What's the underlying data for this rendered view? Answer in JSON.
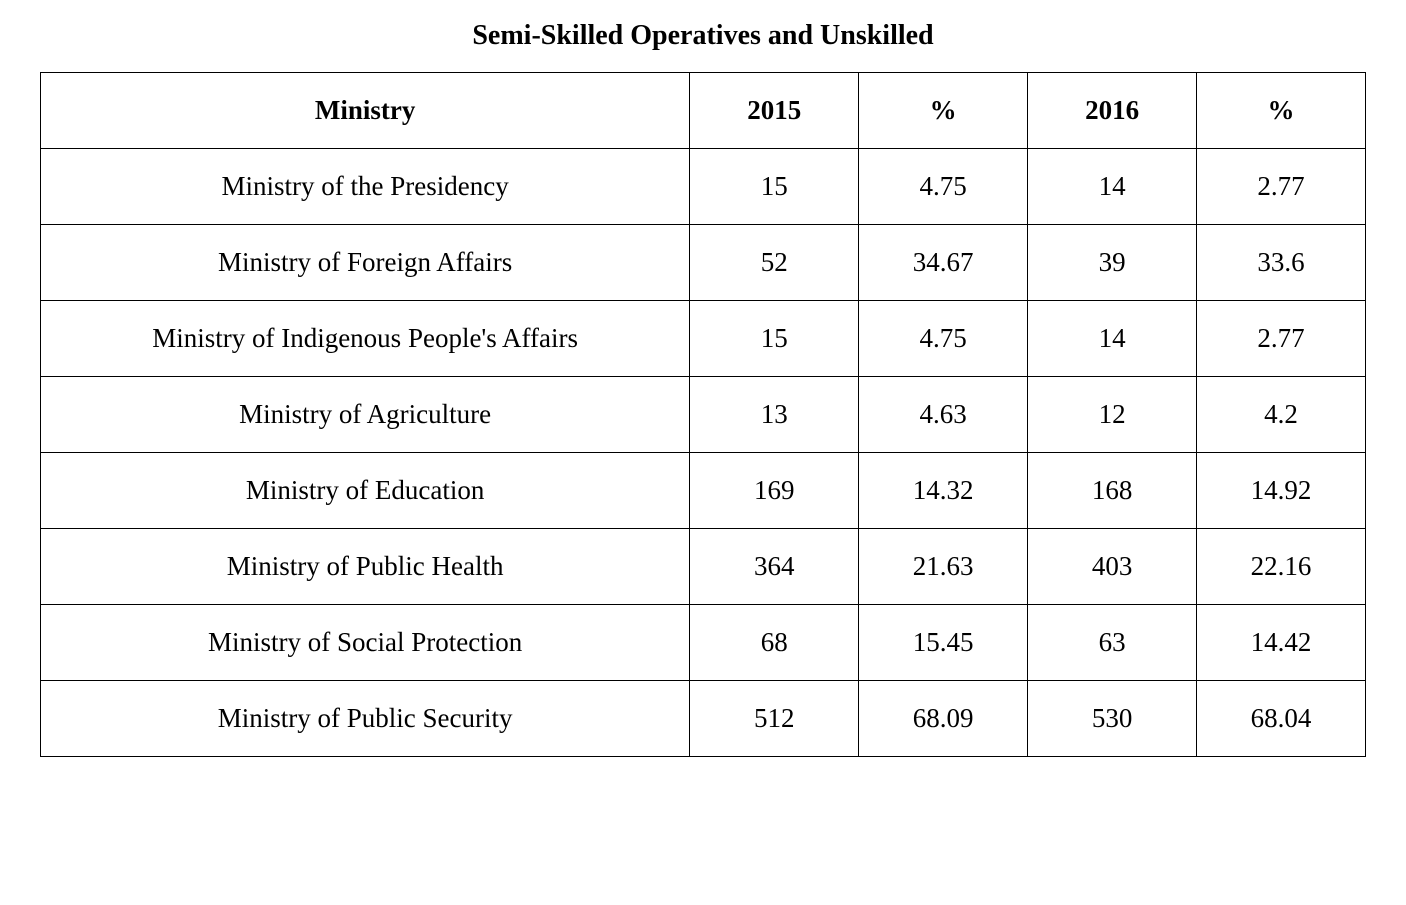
{
  "table": {
    "title": "Semi-Skilled Operatives and Unskilled",
    "columns": [
      "Ministry",
      "2015",
      "%",
      "2016",
      "%"
    ],
    "rows": [
      [
        "Ministry of the Presidency",
        "15",
        "4.75",
        "14",
        "2.77"
      ],
      [
        "Ministry of Foreign Affairs",
        "52",
        "34.67",
        "39",
        "33.6"
      ],
      [
        "Ministry of Indigenous People's Affairs",
        "15",
        "4.75",
        "14",
        "2.77"
      ],
      [
        "Ministry of Agriculture",
        "13",
        "4.63",
        "12",
        "4.2"
      ],
      [
        "Ministry of Education",
        "169",
        "14.32",
        "168",
        "14.92"
      ],
      [
        "Ministry of Public Health",
        "364",
        "21.63",
        "403",
        "22.16"
      ],
      [
        "Ministry of Social Protection",
        "68",
        "15.45",
        "63",
        "14.42"
      ],
      [
        "Ministry of Public Security",
        "512",
        "68.09",
        "530",
        "68.04"
      ]
    ],
    "styling": {
      "font_family": "Times New Roman",
      "title_fontsize": 28,
      "title_fontweight": "bold",
      "cell_fontsize": 27,
      "header_fontweight": "bold",
      "border_color": "#000000",
      "border_width": 1.5,
      "background_color": "#ffffff",
      "text_color": "#000000",
      "column_widths_pct": [
        49,
        12.75,
        12.75,
        12.75,
        12.75
      ],
      "cell_padding_vertical": 22,
      "text_align": "center"
    }
  }
}
